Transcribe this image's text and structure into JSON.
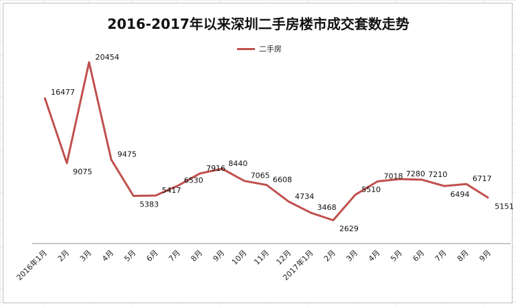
{
  "chart_data": {
    "type": "line",
    "title": "2016-2017年以来深圳二手房楼市成交套数走势",
    "legend": {
      "position": "top",
      "entries": [
        "二手房"
      ]
    },
    "categories": [
      "2016年1月",
      "2月",
      "3月",
      "4月",
      "5月",
      "6月",
      "7月",
      "8月",
      "9月",
      "10月",
      "11月",
      "12月",
      "2017年1月",
      "2月",
      "3月",
      "4月",
      "5月",
      "6月",
      "7月",
      "8月",
      "9月"
    ],
    "series": [
      {
        "name": "二手房",
        "color": "#c0504d",
        "values": [
          16477,
          9075,
          20454,
          9475,
          5383,
          5417,
          6530,
          7916,
          8440,
          7065,
          6608,
          4734,
          3468,
          2629,
          5510,
          7018,
          7280,
          7210,
          6494,
          6717,
          5151
        ]
      }
    ],
    "ylim": [
      0,
      24000
    ],
    "xlabel": "",
    "ylabel": "",
    "grid": false
  }
}
